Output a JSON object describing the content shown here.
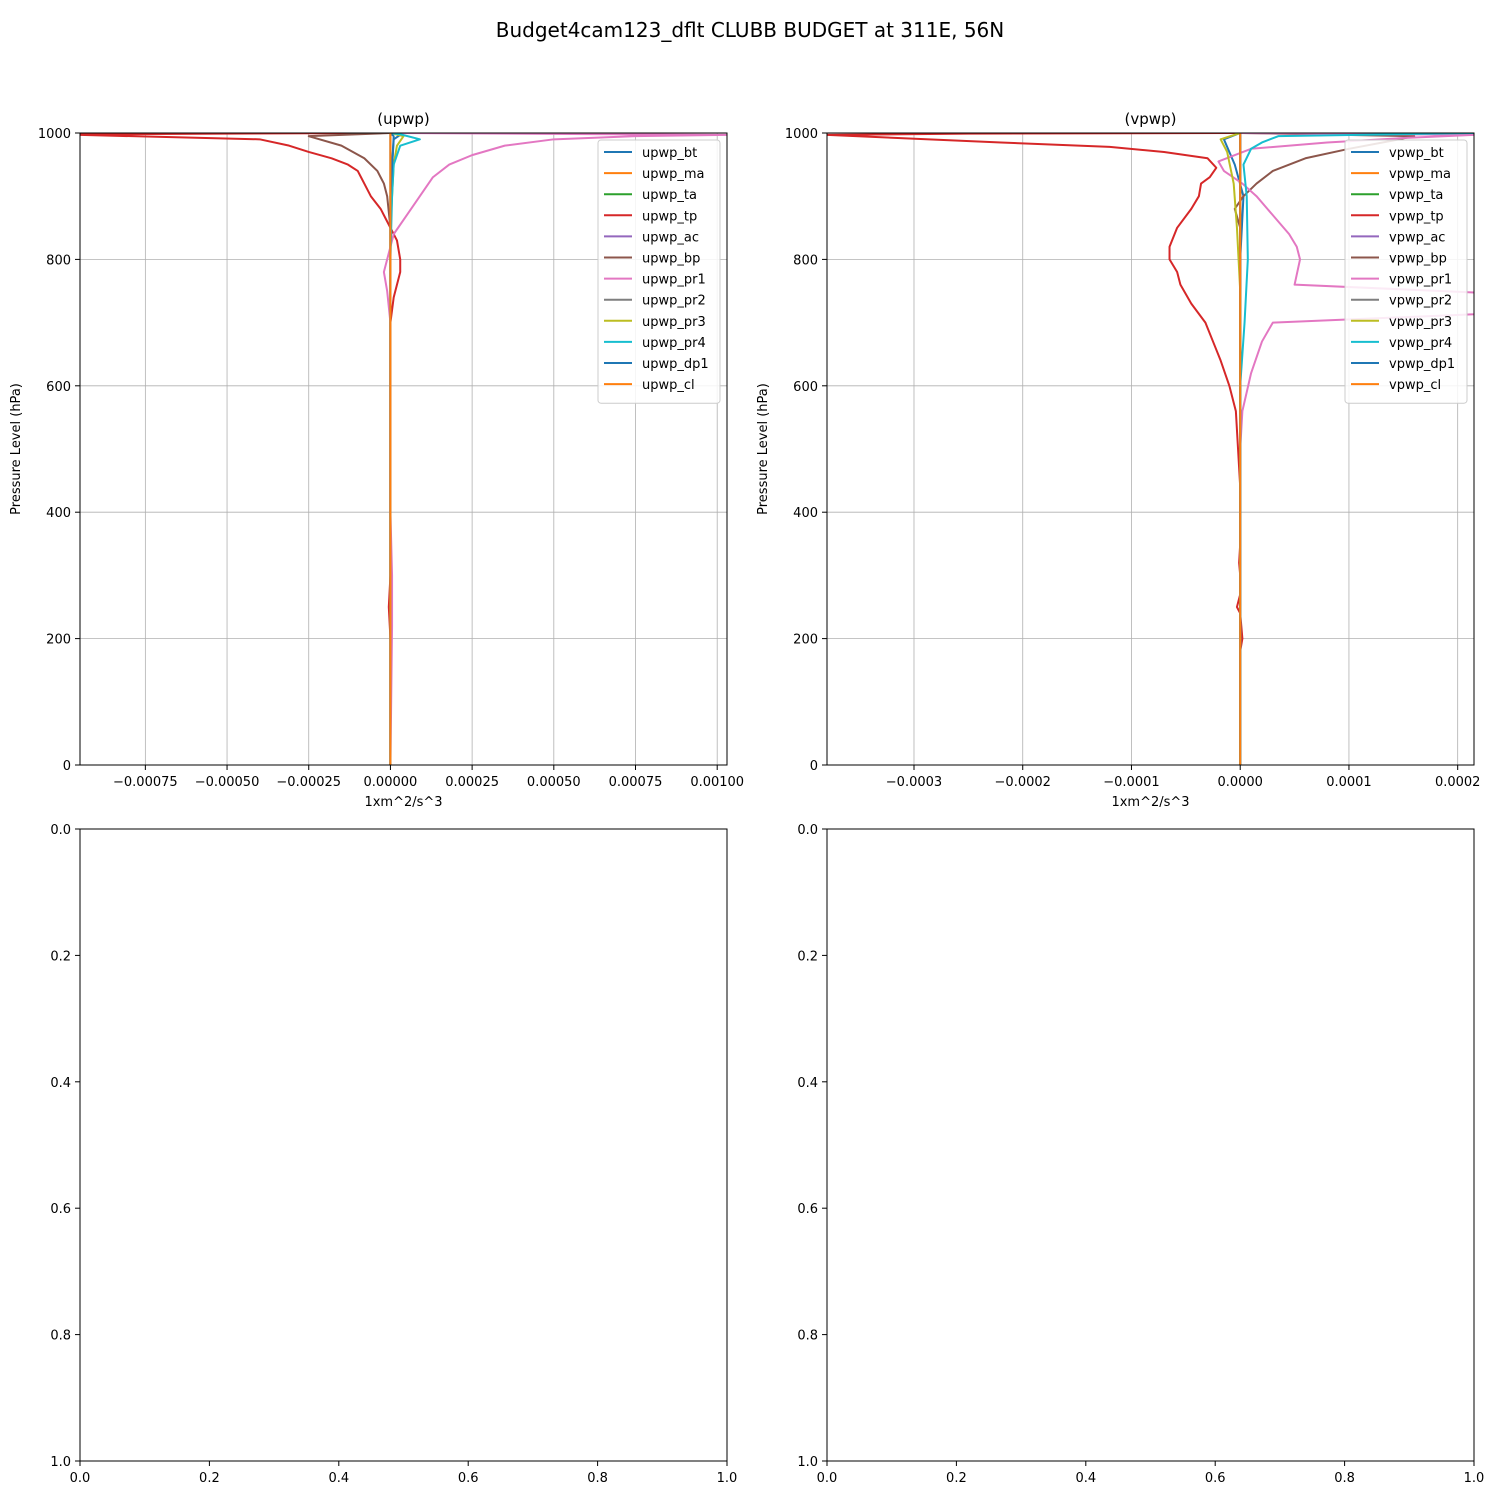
{
  "figure": {
    "suptitle": "Budget4cam123_dflt CLUBB BUDGET at 311E, 56N"
  },
  "chart_data": [
    {
      "type": "line",
      "title": "(upwp)",
      "xlabel": "1xm^2/s^3",
      "ylabel": "Pressure Level (hPa)",
      "xlim": [
        -0.00095,
        0.00103
      ],
      "ylim": [
        1000,
        0
      ],
      "xticks": [
        -0.00075,
        -0.0005,
        -0.00025,
        0.0,
        0.00025,
        0.0005,
        0.00075,
        0.001
      ],
      "xtick_labels": [
        "−0.00075",
        "−0.00050",
        "−0.00025",
        "0.00000",
        "0.00025",
        "0.00050",
        "0.00075",
        "0.00100"
      ],
      "yticks": [
        0,
        200,
        400,
        600,
        800,
        1000
      ],
      "ytick_labels": [
        "0",
        "200",
        "400",
        "600",
        "800",
        "1000"
      ],
      "grid": true,
      "legend": "top-right",
      "series": [
        {
          "name": "upwp_bt",
          "color": "#1f77b4",
          "points": [
            [
              0,
              0
            ],
            [
              0,
              600
            ],
            [
              0,
              900
            ],
            [
              1e-05,
              990
            ],
            [
              3e-05,
              997
            ],
            [
              0,
              1000
            ]
          ]
        },
        {
          "name": "upwp_ma",
          "color": "#ff7f0e",
          "points": [
            [
              0,
              0
            ],
            [
              0,
              1000
            ]
          ]
        },
        {
          "name": "upwp_ta",
          "color": "#2ca02c",
          "points": [
            [
              0,
              0
            ],
            [
              0,
              1000
            ]
          ]
        },
        {
          "name": "upwp_tp",
          "color": "#d62728",
          "points": [
            [
              0,
              0
            ],
            [
              0,
              200
            ],
            [
              -5e-06,
              250
            ],
            [
              0,
              300
            ],
            [
              0,
              700
            ],
            [
              1e-05,
              740
            ],
            [
              3e-05,
              780
            ],
            [
              3e-05,
              800
            ],
            [
              2e-05,
              830
            ],
            [
              -1e-05,
              860
            ],
            [
              -3e-05,
              880
            ],
            [
              -6e-05,
              900
            ],
            [
              -8e-05,
              920
            ],
            [
              -9e-05,
              930
            ],
            [
              -0.0001,
              940
            ],
            [
              -0.00013,
              950
            ],
            [
              -0.00018,
              960
            ],
            [
              -0.00025,
              970
            ],
            [
              -0.00031,
              980
            ],
            [
              -0.0004,
              990
            ],
            [
              -0.00095,
              997
            ],
            [
              -0.00095,
              998
            ],
            [
              0,
              1000
            ]
          ]
        },
        {
          "name": "upwp_ac",
          "color": "#9467bd",
          "points": [
            [
              0,
              0
            ],
            [
              0,
              1000
            ]
          ]
        },
        {
          "name": "upwp_bp",
          "color": "#8c564b",
          "points": [
            [
              0,
              0
            ],
            [
              0,
              850
            ],
            [
              -1e-05,
              900
            ],
            [
              -2e-05,
              920
            ],
            [
              -4e-05,
              940
            ],
            [
              -8e-05,
              960
            ],
            [
              -0.00015,
              980
            ],
            [
              -0.00025,
              995
            ],
            [
              0,
              1000
            ]
          ]
        },
        {
          "name": "upwp_pr1",
          "color": "#e377c2",
          "points": [
            [
              0,
              0
            ],
            [
              5e-06,
              220
            ],
            [
              5e-06,
              300
            ],
            [
              0,
              400
            ],
            [
              0,
              700
            ],
            [
              -1e-05,
              750
            ],
            [
              -2e-05,
              780
            ],
            [
              -1e-05,
              800
            ],
            [
              1e-05,
              840
            ],
            [
              5e-05,
              870
            ],
            [
              9e-05,
              900
            ],
            [
              0.00013,
              930
            ],
            [
              0.00018,
              950
            ],
            [
              0.00025,
              965
            ],
            [
              0.00035,
              980
            ],
            [
              0.0005,
              990
            ],
            [
              0.00075,
              995
            ],
            [
              0.00103,
              997
            ],
            [
              0,
              1000
            ]
          ]
        },
        {
          "name": "upwp_pr2",
          "color": "#7f7f7f",
          "points": [
            [
              0,
              0
            ],
            [
              0,
              1000
            ]
          ]
        },
        {
          "name": "upwp_pr3",
          "color": "#bcbd22",
          "points": [
            [
              0,
              0
            ],
            [
              0,
              850
            ],
            [
              1e-05,
              950
            ],
            [
              2e-05,
              980
            ],
            [
              4e-05,
              995
            ],
            [
              0,
              1000
            ]
          ]
        },
        {
          "name": "upwp_pr4",
          "color": "#17becf",
          "points": [
            [
              0,
              0
            ],
            [
              0,
              800
            ],
            [
              5e-06,
              900
            ],
            [
              1e-05,
              950
            ],
            [
              3e-05,
              980
            ],
            [
              9e-05,
              990
            ],
            [
              3e-05,
              998
            ],
            [
              0,
              1000
            ]
          ]
        },
        {
          "name": "upwp_dp1",
          "color": "#1f77b4",
          "points": [
            [
              0,
              0
            ],
            [
              0,
              900
            ],
            [
              1e-05,
              995
            ],
            [
              0,
              1000
            ]
          ]
        },
        {
          "name": "upwp_cl",
          "color": "#ff7f0e",
          "points": [
            [
              0,
              0
            ],
            [
              0,
              1000
            ]
          ]
        }
      ]
    },
    {
      "type": "line",
      "title": "(vpwp)",
      "xlabel": "1xm^2/s^3",
      "ylabel": "Pressure Level (hPa)",
      "xlim": [
        -0.00038,
        0.000215
      ],
      "ylim": [
        1000,
        0
      ],
      "xticks": [
        -0.0003,
        -0.0002,
        -0.0001,
        0.0,
        0.0001,
        0.0002
      ],
      "xtick_labels": [
        "−0.0003",
        "−0.0002",
        "−0.0001",
        "0.0000",
        "0.0001",
        "0.0002"
      ],
      "yticks": [
        0,
        200,
        400,
        600,
        800,
        1000
      ],
      "ytick_labels": [
        "0",
        "200",
        "400",
        "600",
        "800",
        "1000"
      ],
      "grid": true,
      "legend": "top-right",
      "series": [
        {
          "name": "vpwp_bt",
          "color": "#1f77b4",
          "points": [
            [
              0,
              0
            ],
            [
              0,
              800
            ],
            [
              3e-06,
              900
            ],
            [
              -5e-06,
              950
            ],
            [
              -1.5e-05,
              990
            ],
            [
              0,
              1000
            ]
          ]
        },
        {
          "name": "vpwp_ma",
          "color": "#ff7f0e",
          "points": [
            [
              0,
              0
            ],
            [
              0,
              1000
            ]
          ]
        },
        {
          "name": "vpwp_ta",
          "color": "#2ca02c",
          "points": [
            [
              0,
              0
            ],
            [
              0,
              1000
            ]
          ]
        },
        {
          "name": "vpwp_tp",
          "color": "#d62728",
          "points": [
            [
              0,
              0
            ],
            [
              0,
              180
            ],
            [
              2e-06,
              200
            ],
            [
              1e-06,
              220
            ],
            [
              0,
              240
            ],
            [
              -3e-06,
              250
            ],
            [
              0,
              270
            ],
            [
              0,
              300
            ],
            [
              -1e-06,
              320
            ],
            [
              0,
              350
            ],
            [
              0,
              440
            ],
            [
              -2e-06,
              500
            ],
            [
              -4e-06,
              560
            ],
            [
              -1e-05,
              600
            ],
            [
              -1.8e-05,
              640
            ],
            [
              -2.5e-05,
              670
            ],
            [
              -3.2e-05,
              700
            ],
            [
              -4.5e-05,
              730
            ],
            [
              -5.5e-05,
              760
            ],
            [
              -5.8e-05,
              780
            ],
            [
              -6.5e-05,
              800
            ],
            [
              -6.5e-05,
              820
            ],
            [
              -5.8e-05,
              850
            ],
            [
              -4.5e-05,
              880
            ],
            [
              -3.8e-05,
              900
            ],
            [
              -3.6e-05,
              920
            ],
            [
              -2.8e-05,
              930
            ],
            [
              -2.2e-05,
              945
            ],
            [
              -3e-05,
              960
            ],
            [
              -7e-05,
              970
            ],
            [
              -0.00012,
              978
            ],
            [
              -0.00022,
              985
            ],
            [
              -0.00038,
              997
            ],
            [
              -0.00025,
              999
            ],
            [
              0,
              1000
            ]
          ]
        },
        {
          "name": "vpwp_ac",
          "color": "#9467bd",
          "points": [
            [
              0,
              0
            ],
            [
              0,
              1000
            ]
          ]
        },
        {
          "name": "vpwp_bp",
          "color": "#8c564b",
          "points": [
            [
              0,
              0
            ],
            [
              0,
              850
            ],
            [
              -5e-06,
              880
            ],
            [
              3e-06,
              900
            ],
            [
              1.5e-05,
              920
            ],
            [
              3e-05,
              940
            ],
            [
              6e-05,
              960
            ],
            [
              0.0001,
              975
            ],
            [
              0.00014,
              988
            ],
            [
              0.00016,
              995
            ],
            [
              0,
              1000
            ]
          ]
        },
        {
          "name": "vpwp_pr1",
          "color": "#e377c2",
          "points": [
            [
              0,
              0
            ],
            [
              0,
              500
            ],
            [
              2e-06,
              560
            ],
            [
              1e-05,
              620
            ],
            [
              2e-05,
              670
            ],
            [
              3e-05,
              700
            ],
            [
              0.00045,
              730
            ],
            [
              5e-05,
              760
            ],
            [
              5.5e-05,
              800
            ],
            [
              5.2e-05,
              820
            ],
            [
              4.5e-05,
              840
            ],
            [
              3.5e-05,
              860
            ],
            [
              2.5e-05,
              880
            ],
            [
              1.5e-05,
              900
            ],
            [
              2e-06,
              920
            ],
            [
              -1.5e-05,
              940
            ],
            [
              -2e-05,
              955
            ],
            [
              1e-05,
              975
            ],
            [
              8e-05,
              985
            ],
            [
              0.00015,
              992
            ],
            [
              0.000215,
              997
            ],
            [
              0,
              1000
            ]
          ]
        },
        {
          "name": "vpwp_pr2",
          "color": "#7f7f7f",
          "points": [
            [
              0,
              0
            ],
            [
              0,
              1000
            ]
          ]
        },
        {
          "name": "vpwp_pr3",
          "color": "#bcbd22",
          "points": [
            [
              0,
              0
            ],
            [
              0,
              750
            ],
            [
              -3e-06,
              850
            ],
            [
              -6e-06,
              920
            ],
            [
              -1.2e-05,
              970
            ],
            [
              -1.8e-05,
              990
            ],
            [
              0,
              1000
            ]
          ]
        },
        {
          "name": "vpwp_pr4",
          "color": "#17becf",
          "points": [
            [
              0,
              0
            ],
            [
              0,
              600
            ],
            [
              4e-06,
              700
            ],
            [
              7e-06,
              800
            ],
            [
              6e-06,
              900
            ],
            [
              3e-06,
              950
            ],
            [
              1e-05,
              975
            ],
            [
              2e-05,
              985
            ],
            [
              3.5e-05,
              995
            ],
            [
              0.000215,
              1000
            ]
          ]
        },
        {
          "name": "vpwp_dp1",
          "color": "#1f77b4",
          "points": [
            [
              0,
              0
            ],
            [
              0,
              1000
            ]
          ]
        },
        {
          "name": "vpwp_cl",
          "color": "#ff7f0e",
          "points": [
            [
              0,
              0
            ],
            [
              0,
              1000
            ]
          ]
        }
      ]
    },
    {
      "type": "line",
      "xlim": [
        0,
        1
      ],
      "ylim": [
        0,
        1
      ],
      "xticks": [
        0,
        0.2,
        0.4,
        0.6,
        0.8,
        1.0
      ],
      "xtick_labels": [
        "0.0",
        "0.2",
        "0.4",
        "0.6",
        "0.8",
        "1.0"
      ],
      "yticks": [
        0,
        0.2,
        0.4,
        0.6,
        0.8,
        1.0
      ],
      "ytick_labels": [
        "0.0",
        "0.2",
        "0.4",
        "0.6",
        "0.8",
        "1.0"
      ],
      "grid": false,
      "series": []
    },
    {
      "type": "line",
      "xlim": [
        0,
        1
      ],
      "ylim": [
        0,
        1
      ],
      "xticks": [
        0,
        0.2,
        0.4,
        0.6,
        0.8,
        1.0
      ],
      "xtick_labels": [
        "0.0",
        "0.2",
        "0.4",
        "0.6",
        "0.8",
        "1.0"
      ],
      "yticks": [
        0,
        0.2,
        0.4,
        0.6,
        0.8,
        1.0
      ],
      "ytick_labels": [
        "0.0",
        "0.2",
        "0.4",
        "0.6",
        "0.8",
        "1.0"
      ],
      "grid": false,
      "series": []
    }
  ]
}
